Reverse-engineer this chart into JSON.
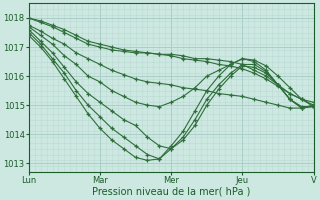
{
  "bg_color": "#cce8e0",
  "plot_bg_color": "#cce8e0",
  "grid_color_major": "#aacfc8",
  "grid_color_minor": "#bdd9d4",
  "line_color": "#2d6e3a",
  "xlabel": "Pression niveau de la mer( hPa )",
  "xlabel_color": "#1a5c2a",
  "tick_color": "#1a5c2a",
  "ylim": [
    1012.7,
    1018.5
  ],
  "yticks": [
    1013,
    1014,
    1015,
    1016,
    1017,
    1018
  ],
  "xtick_positions": [
    0,
    24,
    48,
    72,
    96
  ],
  "xtick_labels": [
    "Lun",
    "Mar",
    "Mer",
    "Jeu",
    "V"
  ],
  "lines": [
    {
      "pts": [
        [
          0,
          1018.0
        ],
        [
          4,
          1017.85
        ],
        [
          8,
          1017.7
        ],
        [
          12,
          1017.5
        ],
        [
          16,
          1017.3
        ],
        [
          20,
          1017.1
        ],
        [
          24,
          1017.0
        ],
        [
          28,
          1016.9
        ],
        [
          32,
          1016.85
        ],
        [
          36,
          1016.8
        ],
        [
          40,
          1016.8
        ],
        [
          44,
          1016.75
        ],
        [
          48,
          1016.75
        ],
        [
          52,
          1016.7
        ],
        [
          56,
          1016.6
        ],
        [
          60,
          1016.6
        ],
        [
          64,
          1016.55
        ],
        [
          68,
          1016.5
        ],
        [
          72,
          1016.4
        ],
        [
          76,
          1016.2
        ],
        [
          80,
          1016.0
        ],
        [
          84,
          1015.7
        ],
        [
          88,
          1015.4
        ],
        [
          92,
          1015.2
        ],
        [
          96,
          1015.0
        ]
      ]
    },
    {
      "pts": [
        [
          0,
          1018.0
        ],
        [
          4,
          1017.9
        ],
        [
          8,
          1017.75
        ],
        [
          12,
          1017.6
        ],
        [
          16,
          1017.4
        ],
        [
          20,
          1017.2
        ],
        [
          24,
          1017.1
        ],
        [
          28,
          1017.0
        ],
        [
          32,
          1016.9
        ],
        [
          36,
          1016.85
        ],
        [
          40,
          1016.8
        ],
        [
          44,
          1016.75
        ],
        [
          48,
          1016.7
        ],
        [
          52,
          1016.6
        ],
        [
          56,
          1016.55
        ],
        [
          60,
          1016.5
        ],
        [
          64,
          1016.4
        ],
        [
          68,
          1016.35
        ],
        [
          72,
          1016.25
        ],
        [
          76,
          1016.1
        ],
        [
          80,
          1015.9
        ],
        [
          84,
          1015.65
        ],
        [
          88,
          1015.4
        ],
        [
          92,
          1015.2
        ],
        [
          96,
          1015.1
        ]
      ]
    },
    {
      "pts": [
        [
          0,
          1017.75
        ],
        [
          4,
          1017.55
        ],
        [
          8,
          1017.3
        ],
        [
          12,
          1017.1
        ],
        [
          16,
          1016.8
        ],
        [
          20,
          1016.6
        ],
        [
          24,
          1016.4
        ],
        [
          28,
          1016.2
        ],
        [
          32,
          1016.05
        ],
        [
          36,
          1015.9
        ],
        [
          40,
          1015.8
        ],
        [
          44,
          1015.75
        ],
        [
          48,
          1015.7
        ],
        [
          52,
          1015.6
        ],
        [
          56,
          1015.55
        ],
        [
          60,
          1015.5
        ],
        [
          64,
          1015.4
        ],
        [
          68,
          1015.35
        ],
        [
          72,
          1015.3
        ],
        [
          76,
          1015.2
        ],
        [
          80,
          1015.1
        ],
        [
          84,
          1015.0
        ],
        [
          88,
          1014.9
        ],
        [
          92,
          1014.9
        ],
        [
          96,
          1014.95
        ]
      ]
    },
    {
      "pts": [
        [
          0,
          1017.7
        ],
        [
          4,
          1017.4
        ],
        [
          8,
          1017.1
        ],
        [
          12,
          1016.7
        ],
        [
          16,
          1016.4
        ],
        [
          20,
          1016.0
        ],
        [
          24,
          1015.8
        ],
        [
          28,
          1015.5
        ],
        [
          32,
          1015.3
        ],
        [
          36,
          1015.1
        ],
        [
          40,
          1015.0
        ],
        [
          44,
          1014.95
        ],
        [
          48,
          1015.1
        ],
        [
          52,
          1015.3
        ],
        [
          56,
          1015.6
        ],
        [
          60,
          1016.0
        ],
        [
          64,
          1016.2
        ],
        [
          68,
          1016.4
        ],
        [
          72,
          1016.6
        ],
        [
          76,
          1016.55
        ],
        [
          80,
          1016.35
        ],
        [
          84,
          1016.0
        ],
        [
          88,
          1015.6
        ],
        [
          92,
          1015.2
        ],
        [
          96,
          1014.95
        ]
      ]
    },
    {
      "pts": [
        [
          0,
          1017.6
        ],
        [
          4,
          1017.2
        ],
        [
          8,
          1016.8
        ],
        [
          12,
          1016.3
        ],
        [
          16,
          1015.8
        ],
        [
          20,
          1015.4
        ],
        [
          24,
          1015.1
        ],
        [
          28,
          1014.8
        ],
        [
          32,
          1014.5
        ],
        [
          36,
          1014.3
        ],
        [
          40,
          1013.9
        ],
        [
          44,
          1013.6
        ],
        [
          48,
          1013.5
        ],
        [
          52,
          1013.8
        ],
        [
          56,
          1014.3
        ],
        [
          60,
          1015.0
        ],
        [
          64,
          1015.55
        ],
        [
          68,
          1016.0
        ],
        [
          72,
          1016.35
        ],
        [
          76,
          1016.3
        ],
        [
          80,
          1016.1
        ],
        [
          84,
          1015.7
        ],
        [
          88,
          1015.2
        ],
        [
          92,
          1014.95
        ],
        [
          96,
          1014.95
        ]
      ]
    },
    {
      "pts": [
        [
          0,
          1017.5
        ],
        [
          4,
          1017.1
        ],
        [
          8,
          1016.6
        ],
        [
          12,
          1016.1
        ],
        [
          16,
          1015.5
        ],
        [
          20,
          1015.0
        ],
        [
          24,
          1014.6
        ],
        [
          28,
          1014.2
        ],
        [
          32,
          1013.9
        ],
        [
          36,
          1013.6
        ],
        [
          40,
          1013.3
        ],
        [
          44,
          1013.15
        ],
        [
          48,
          1013.5
        ],
        [
          52,
          1013.9
        ],
        [
          56,
          1014.5
        ],
        [
          60,
          1015.2
        ],
        [
          64,
          1015.7
        ],
        [
          68,
          1016.1
        ],
        [
          72,
          1016.4
        ],
        [
          76,
          1016.4
        ],
        [
          80,
          1016.15
        ],
        [
          84,
          1015.7
        ],
        [
          88,
          1015.2
        ],
        [
          92,
          1014.9
        ],
        [
          96,
          1015.0
        ]
      ]
    },
    {
      "pts": [
        [
          0,
          1017.4
        ],
        [
          4,
          1017.0
        ],
        [
          8,
          1016.5
        ],
        [
          12,
          1015.9
        ],
        [
          16,
          1015.3
        ],
        [
          20,
          1014.7
        ],
        [
          24,
          1014.2
        ],
        [
          28,
          1013.8
        ],
        [
          32,
          1013.5
        ],
        [
          36,
          1013.2
        ],
        [
          40,
          1013.1
        ],
        [
          44,
          1013.15
        ],
        [
          48,
          1013.6
        ],
        [
          52,
          1014.1
        ],
        [
          56,
          1014.8
        ],
        [
          60,
          1015.5
        ],
        [
          64,
          1016.0
        ],
        [
          68,
          1016.4
        ],
        [
          72,
          1016.6
        ],
        [
          76,
          1016.5
        ],
        [
          80,
          1016.2
        ],
        [
          84,
          1015.7
        ],
        [
          88,
          1015.2
        ],
        [
          92,
          1014.9
        ],
        [
          96,
          1015.0
        ]
      ]
    }
  ]
}
